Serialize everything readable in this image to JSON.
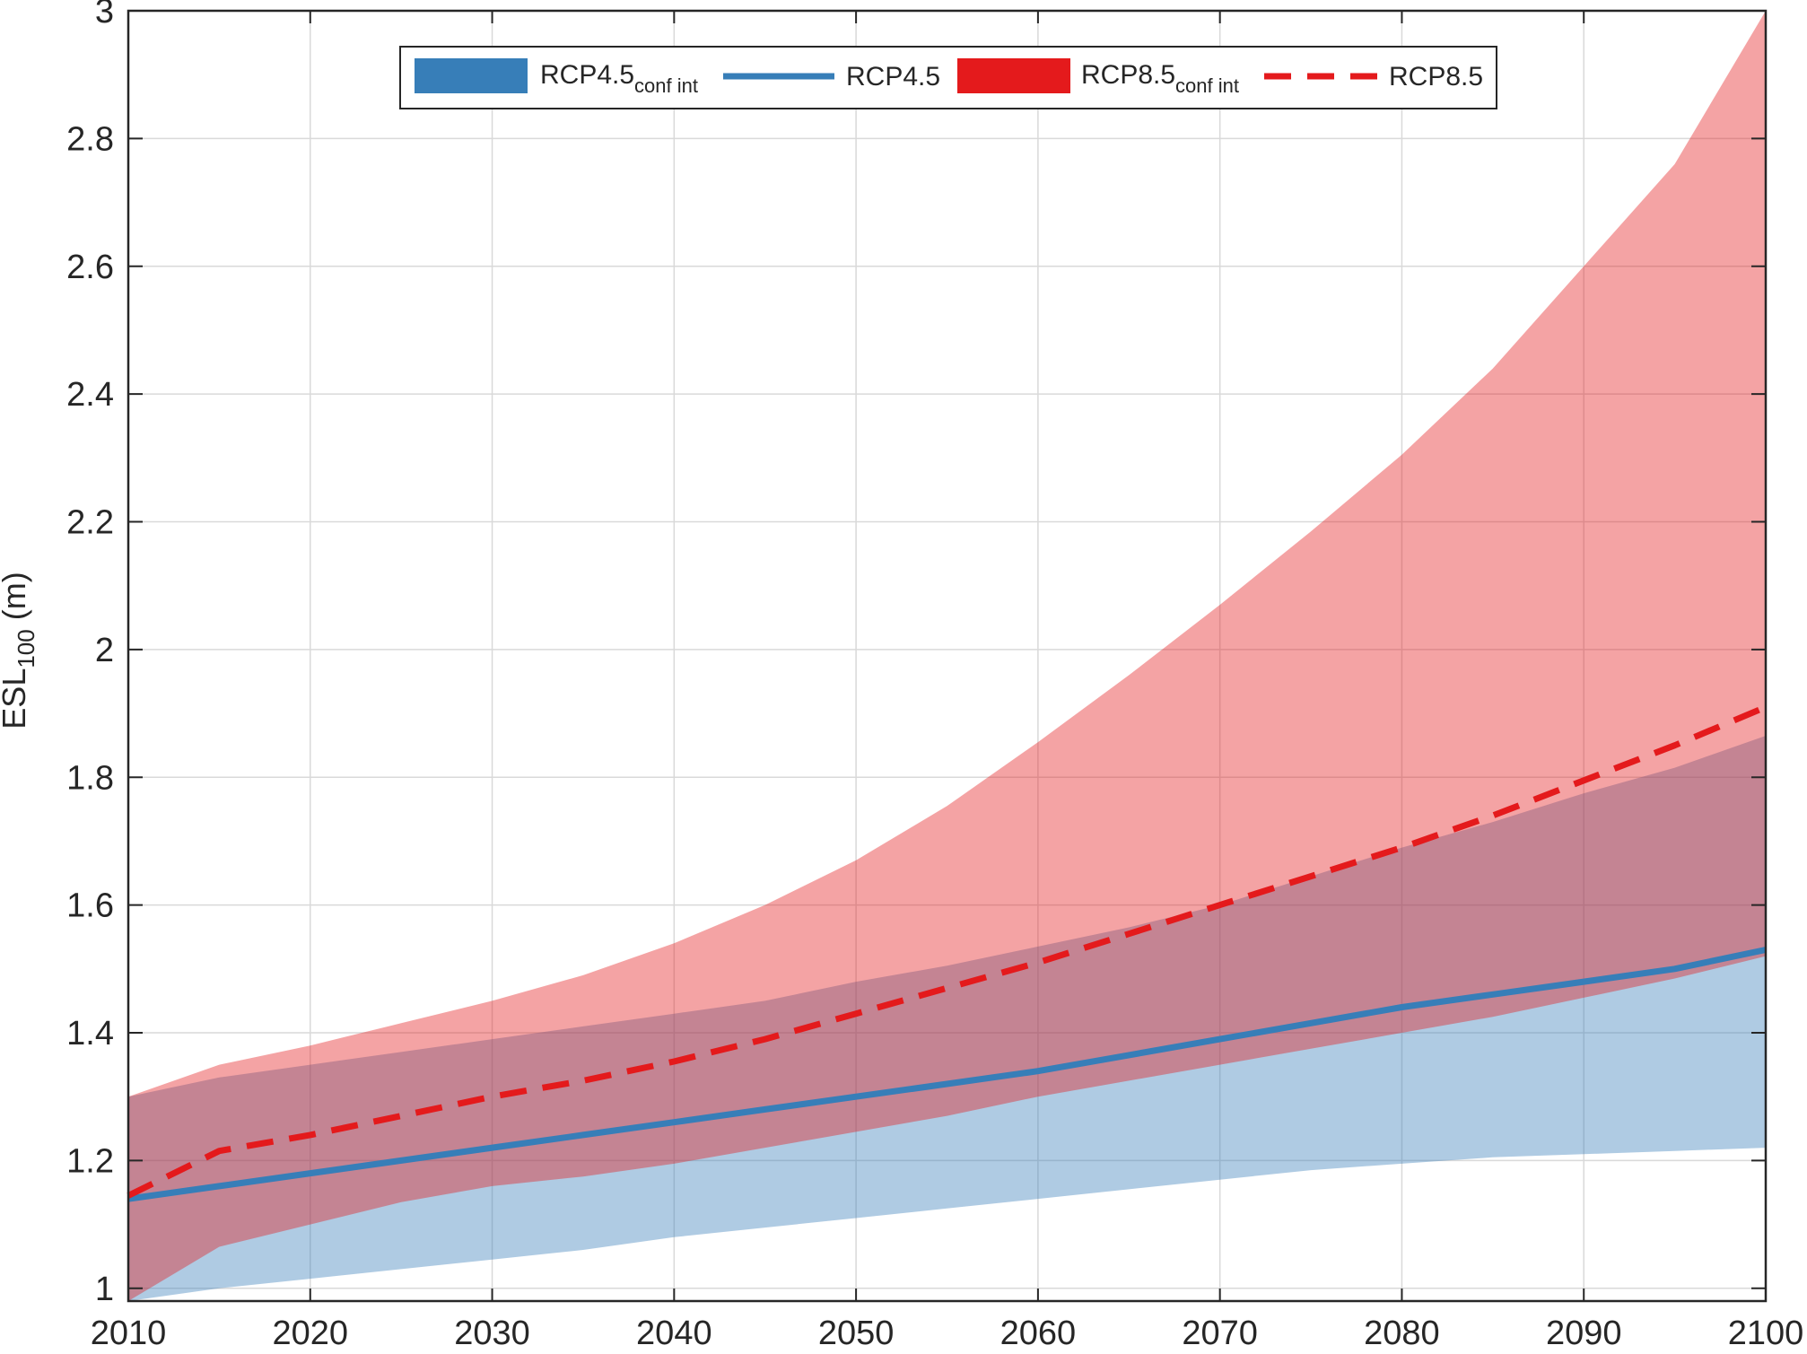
{
  "chart_data": {
    "type": "area",
    "title": "",
    "xlabel": "",
    "ylabel": {
      "main": "ESL",
      "sub": "100",
      "unit": " (m)"
    },
    "xlim": [
      2010,
      2100
    ],
    "ylim": [
      0.98,
      3.0
    ],
    "xticks": [
      2010,
      2020,
      2030,
      2040,
      2050,
      2060,
      2070,
      2080,
      2090,
      2100
    ],
    "yticks": [
      1,
      1.2,
      1.4,
      1.6,
      1.8,
      2,
      2.2,
      2.4,
      2.6,
      2.8,
      3
    ],
    "ytick_labels": [
      "1",
      "1.2",
      "1.4",
      "1.6",
      "1.8",
      "2",
      "2.2",
      "2.4",
      "2.6",
      "2.8",
      "3"
    ],
    "grid": true,
    "legend_position": "top-center",
    "x": [
      2010,
      2015,
      2020,
      2025,
      2030,
      2035,
      2040,
      2045,
      2050,
      2055,
      2060,
      2065,
      2070,
      2075,
      2080,
      2085,
      2090,
      2095,
      2100
    ],
    "series": [
      {
        "name": "RCP4.5",
        "sub": "conf int",
        "kind": "band",
        "color": "#377eb8",
        "opacity": 0.4,
        "upper": [
          1.3,
          1.33,
          1.35,
          1.37,
          1.39,
          1.41,
          1.43,
          1.45,
          1.48,
          1.505,
          1.535,
          1.565,
          1.6,
          1.645,
          1.69,
          1.73,
          1.775,
          1.815,
          1.865
        ],
        "lower": [
          0.98,
          1.0,
          1.015,
          1.03,
          1.045,
          1.06,
          1.08,
          1.095,
          1.11,
          1.125,
          1.14,
          1.155,
          1.17,
          1.185,
          1.195,
          1.205,
          1.21,
          1.215,
          1.22
        ]
      },
      {
        "name": "RCP4.5",
        "kind": "line",
        "color": "#377eb8",
        "dash": "solid",
        "values": [
          1.14,
          1.16,
          1.18,
          1.2,
          1.22,
          1.24,
          1.26,
          1.28,
          1.3,
          1.32,
          1.34,
          1.365,
          1.39,
          1.415,
          1.44,
          1.46,
          1.48,
          1.5,
          1.53
        ]
      },
      {
        "name": "RCP8.5",
        "sub": "conf int",
        "kind": "band",
        "color": "#e41a1c",
        "opacity": 0.4,
        "upper": [
          1.3,
          1.35,
          1.38,
          1.415,
          1.45,
          1.49,
          1.54,
          1.6,
          1.67,
          1.755,
          1.855,
          1.96,
          2.07,
          2.185,
          2.305,
          2.44,
          2.6,
          2.76,
          3.0
        ],
        "lower": [
          0.98,
          1.065,
          1.1,
          1.135,
          1.16,
          1.175,
          1.195,
          1.22,
          1.245,
          1.27,
          1.3,
          1.325,
          1.35,
          1.375,
          1.4,
          1.425,
          1.455,
          1.485,
          1.52
        ]
      },
      {
        "name": "RCP8.5",
        "kind": "line",
        "color": "#e41a1c",
        "dash": "dashed",
        "values": [
          1.145,
          1.215,
          1.24,
          1.27,
          1.3,
          1.325,
          1.355,
          1.39,
          1.43,
          1.47,
          1.51,
          1.555,
          1.6,
          1.645,
          1.69,
          1.74,
          1.795,
          1.85,
          1.91
        ]
      }
    ]
  }
}
